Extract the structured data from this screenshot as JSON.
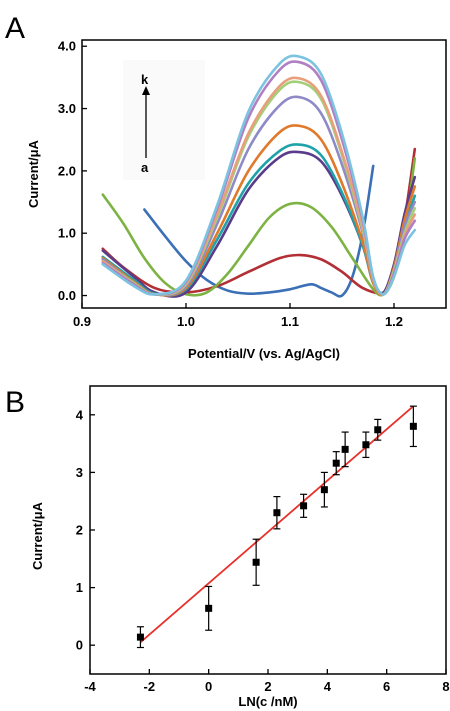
{
  "panels": [
    {
      "letter": "A",
      "chart_data": {
        "type": "line",
        "xlabel": "Potential/V (vs. Ag/AgCl)",
        "ylabel": "Current/μA",
        "xlim": [
          0.9,
          1.25
        ],
        "ylim": [
          -0.2,
          4.1
        ],
        "xticks": [
          0.9,
          1.0,
          1.1,
          1.2
        ],
        "xtick_labels": [
          "0.9",
          "1.0",
          "1.1",
          "1.2"
        ],
        "yticks": [
          0,
          1,
          2,
          3,
          4
        ],
        "ytick_labels": [
          "0.0",
          "1.0",
          "2.0",
          "3.0",
          "4.0"
        ],
        "grid": false,
        "annotation": {
          "top": "k",
          "bottom": "a"
        },
        "series": [
          {
            "color": "#3b6fb6",
            "x": [
              0.96,
              0.98,
              1.0,
              1.02,
              1.04,
              1.06,
              1.08,
              1.1,
              1.12,
              1.13,
              1.14,
              1.15,
              1.16,
              1.17,
              1.18
            ],
            "y": [
              1.38,
              0.95,
              0.55,
              0.25,
              0.08,
              0.03,
              0.05,
              0.1,
              0.18,
              0.12,
              0.05,
              0.0,
              0.3,
              1.0,
              2.08
            ]
          },
          {
            "color": "#b22f35",
            "x": [
              0.92,
              0.94,
              0.97,
              1.0,
              1.03,
              1.06,
              1.09,
              1.11,
              1.13,
              1.15,
              1.17,
              1.19,
              1.2,
              1.21,
              1.22
            ],
            "y": [
              0.75,
              0.45,
              0.12,
              0.05,
              0.15,
              0.38,
              0.6,
              0.65,
              0.58,
              0.38,
              0.12,
              0.05,
              0.35,
              1.2,
              2.35
            ]
          },
          {
            "color": "#7cb342",
            "x": [
              0.92,
              0.94,
              0.96,
              0.98,
              1.0,
              1.02,
              1.04,
              1.06,
              1.08,
              1.1,
              1.12,
              1.14,
              1.16,
              1.18,
              1.19,
              1.2,
              1.21,
              1.22
            ],
            "y": [
              1.62,
              1.15,
              0.6,
              0.2,
              0.02,
              0.05,
              0.35,
              0.8,
              1.25,
              1.47,
              1.42,
              1.1,
              0.6,
              0.1,
              0.02,
              0.3,
              1.0,
              2.2
            ]
          },
          {
            "color": "#5a3d8a",
            "x": [
              0.92,
              0.95,
              0.97,
              1.0,
              1.03,
              1.06,
              1.09,
              1.11,
              1.13,
              1.15,
              1.17,
              1.18,
              1.19,
              1.2,
              1.21,
              1.22
            ],
            "y": [
              0.72,
              0.3,
              0.05,
              0.05,
              0.8,
              1.7,
              2.22,
              2.3,
              2.15,
              1.6,
              0.8,
              0.2,
              0.05,
              0.5,
              1.3,
              1.9
            ]
          },
          {
            "color": "#1fa2a8",
            "x": [
              0.92,
              0.95,
              0.97,
              1.0,
              1.03,
              1.06,
              1.09,
              1.11,
              1.13,
              1.15,
              1.17,
              1.18,
              1.19,
              1.2,
              1.21,
              1.22
            ],
            "y": [
              0.62,
              0.25,
              0.03,
              0.1,
              0.9,
              1.8,
              2.32,
              2.42,
              2.25,
              1.65,
              0.8,
              0.2,
              0.03,
              0.4,
              1.1,
              1.6
            ]
          },
          {
            "color": "#e07a2a",
            "x": [
              0.92,
              0.95,
              0.97,
              1.0,
              1.03,
              1.06,
              1.09,
              1.11,
              1.13,
              1.15,
              1.17,
              1.18,
              1.19,
              1.2,
              1.21,
              1.22
            ],
            "y": [
              0.6,
              0.22,
              0.02,
              0.12,
              1.0,
              2.0,
              2.62,
              2.72,
              2.5,
              1.8,
              0.85,
              0.2,
              0.02,
              0.45,
              1.2,
              1.75
            ]
          },
          {
            "color": "#8e8ac8",
            "x": [
              0.92,
              0.95,
              0.97,
              1.0,
              1.03,
              1.06,
              1.09,
              1.11,
              1.13,
              1.15,
              1.17,
              1.18,
              1.19,
              1.2,
              1.21,
              1.22
            ],
            "y": [
              0.58,
              0.2,
              0.02,
              0.15,
              1.15,
              2.35,
              3.05,
              3.18,
              2.92,
              2.1,
              1.0,
              0.25,
              0.02,
              0.4,
              1.1,
              1.5
            ]
          },
          {
            "color": "#a3cf7a",
            "x": [
              0.92,
              0.95,
              0.97,
              1.0,
              1.03,
              1.06,
              1.09,
              1.11,
              1.13,
              1.15,
              1.17,
              1.18,
              1.19,
              1.2,
              1.21,
              1.22
            ],
            "y": [
              0.55,
              0.2,
              0.02,
              0.18,
              1.25,
              2.55,
              3.3,
              3.42,
              3.15,
              2.25,
              1.05,
              0.25,
              0.02,
              0.4,
              1.0,
              1.4
            ]
          },
          {
            "color": "#e8a07c",
            "x": [
              0.92,
              0.95,
              0.97,
              1.0,
              1.03,
              1.06,
              1.09,
              1.11,
              1.13,
              1.15,
              1.17,
              1.18,
              1.19,
              1.2,
              1.21,
              1.22
            ],
            "y": [
              0.55,
              0.18,
              0.02,
              0.2,
              1.3,
              2.6,
              3.36,
              3.48,
              3.2,
              2.3,
              1.1,
              0.25,
              0.02,
              0.35,
              0.95,
              1.3
            ]
          },
          {
            "color": "#b07fc4",
            "x": [
              0.92,
              0.95,
              0.97,
              1.0,
              1.03,
              1.06,
              1.09,
              1.11,
              1.13,
              1.15,
              1.17,
              1.18,
              1.19,
              1.2,
              1.21,
              1.22
            ],
            "y": [
              0.52,
              0.18,
              0.02,
              0.22,
              1.4,
              2.85,
              3.62,
              3.74,
              3.45,
              2.5,
              1.2,
              0.28,
              0.02,
              0.35,
              0.9,
              1.2
            ]
          },
          {
            "color": "#7cc3e0",
            "x": [
              0.92,
              0.95,
              0.97,
              1.0,
              1.03,
              1.06,
              1.09,
              1.11,
              1.13,
              1.15,
              1.17,
              1.18,
              1.19,
              1.2,
              1.21,
              1.22
            ],
            "y": [
              0.5,
              0.15,
              0.02,
              0.24,
              1.45,
              2.95,
              3.72,
              3.83,
              3.55,
              2.6,
              1.25,
              0.3,
              0.02,
              0.3,
              0.8,
              1.05
            ]
          }
        ]
      }
    },
    {
      "letter": "B",
      "chart_data": {
        "type": "scatter",
        "xlabel": "LN(c /nM)",
        "ylabel": "Current/μA",
        "xlim": [
          -4,
          8
        ],
        "ylim": [
          -0.5,
          4.5
        ],
        "xticks": [
          -4,
          -2,
          0,
          2,
          4,
          6,
          8
        ],
        "xtick_labels": [
          "-4",
          "-2",
          "0",
          "2",
          "4",
          "6",
          "8"
        ],
        "yticks": [
          0,
          1,
          2,
          3,
          4
        ],
        "ytick_labels": [
          "0",
          "1",
          "2",
          "3",
          "4"
        ],
        "grid": false,
        "points": [
          {
            "x": -2.3,
            "y": 0.14,
            "err": 0.18
          },
          {
            "x": 0.0,
            "y": 0.64,
            "err": 0.38
          },
          {
            "x": 1.6,
            "y": 1.44,
            "err": 0.4
          },
          {
            "x": 2.3,
            "y": 2.3,
            "err": 0.28
          },
          {
            "x": 3.2,
            "y": 2.42,
            "err": 0.2
          },
          {
            "x": 3.9,
            "y": 2.7,
            "err": 0.3
          },
          {
            "x": 4.3,
            "y": 3.16,
            "err": 0.2
          },
          {
            "x": 4.6,
            "y": 3.4,
            "err": 0.3
          },
          {
            "x": 5.3,
            "y": 3.48,
            "err": 0.22
          },
          {
            "x": 5.7,
            "y": 3.74,
            "err": 0.18
          },
          {
            "x": 6.9,
            "y": 3.8,
            "err": 0.35
          }
        ],
        "fit_line": {
          "color": "#e8312b",
          "x": [
            -2.3,
            6.9
          ],
          "y": [
            0.05,
            4.15
          ]
        },
        "marker_color": "#000000"
      }
    }
  ]
}
